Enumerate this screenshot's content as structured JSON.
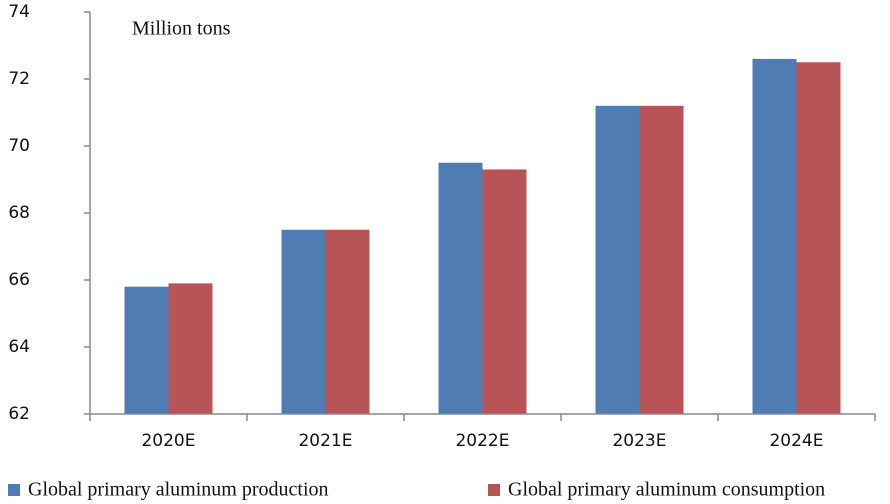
{
  "chart_data": {
    "type": "bar",
    "annotation": "Million tons",
    "categories": [
      "2020E",
      "2021E",
      "2022E",
      "2023E",
      "2024E"
    ],
    "series": [
      {
        "name": "Global primary aluminum production",
        "color": "#4f7cb3",
        "values": [
          65.8,
          67.5,
          69.5,
          71.2,
          72.6
        ]
      },
      {
        "name": "Global primary aluminum consumption",
        "color": "#b85456",
        "values": [
          65.9,
          67.5,
          69.3,
          71.2,
          72.5
        ]
      }
    ],
    "ylim": [
      62,
      74
    ],
    "yticks": [
      62,
      64,
      66,
      68,
      70,
      72,
      74
    ],
    "grid": false,
    "legend": "bottom"
  }
}
